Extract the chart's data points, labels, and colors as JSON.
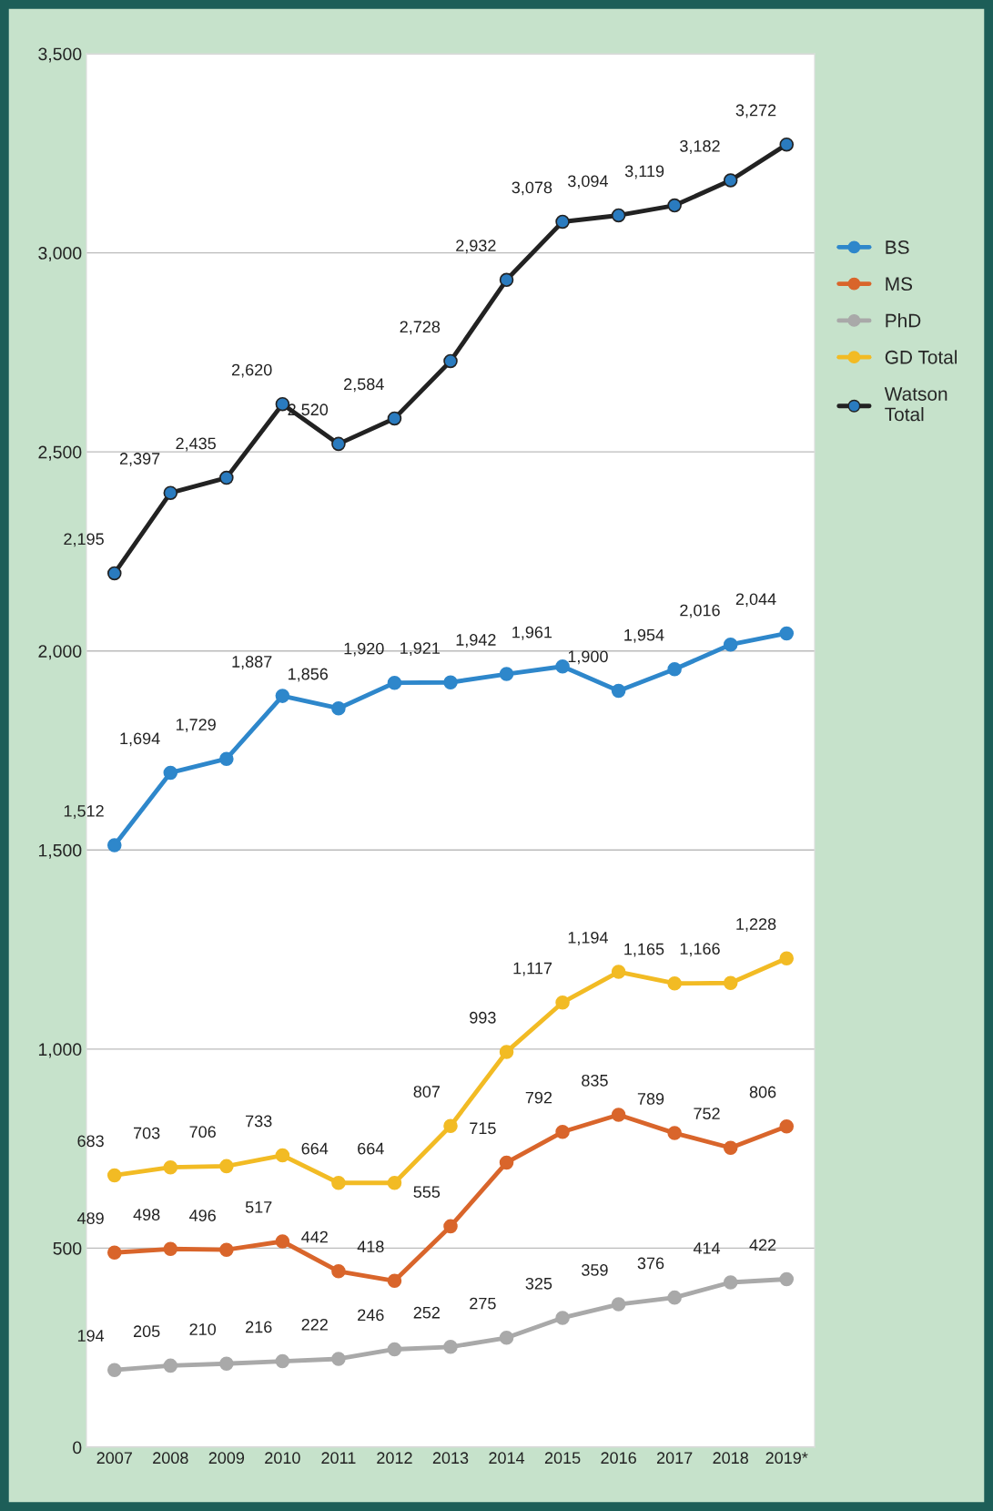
{
  "chart_data": {
    "type": "line",
    "categories": [
      "2007",
      "2008",
      "2009",
      "2010",
      "2011",
      "2012",
      "2013",
      "2014",
      "2015",
      "2016",
      "2017",
      "2018",
      "2019*"
    ],
    "series": [
      {
        "name": "BS",
        "color": "#2e87cb",
        "values": [
          1512,
          1694,
          1729,
          1887,
          1856,
          1920,
          1921,
          1942,
          1961,
          1900,
          1954,
          2016,
          2044
        ],
        "value_labels": [
          "1,512",
          "1,694",
          "1,729",
          "1,887",
          "1,856",
          "1,920",
          "1,921",
          "1,942",
          "1,961",
          "1,900",
          "1,954",
          "2,016",
          "2,044"
        ]
      },
      {
        "name": "MS",
        "color": "#d9652b",
        "values": [
          489,
          498,
          496,
          517,
          442,
          418,
          555,
          715,
          792,
          835,
          789,
          752,
          806
        ],
        "value_labels": [
          "489",
          "498",
          "496",
          "517",
          "442",
          "418",
          "555",
          "715",
          "792",
          "835",
          "789",
          "752",
          "806"
        ]
      },
      {
        "name": "PhD",
        "color": "#a9a9a9",
        "values": [
          194,
          205,
          210,
          216,
          222,
          246,
          252,
          275,
          325,
          359,
          376,
          414,
          422
        ],
        "value_labels": [
          "194",
          "205",
          "210",
          "216",
          "222",
          "246",
          "252",
          "275",
          "325",
          "359",
          "376",
          "414",
          "422"
        ]
      },
      {
        "name": "GD Total",
        "color": "#f2bb24",
        "values": [
          683,
          703,
          706,
          733,
          664,
          664,
          807,
          993,
          1117,
          1194,
          1165,
          1166,
          1228
        ],
        "value_labels": [
          "683",
          "703",
          "706",
          "733",
          "664",
          "664",
          "807",
          "993",
          "1,117",
          "1,194",
          "1,165",
          "1,166",
          "1,228"
        ]
      },
      {
        "name": "Watson\nTotal",
        "color": "#222222",
        "colors": [
          "#2a7bbf",
          "#2a7bbf",
          "#2a7bbf",
          "#2a7bbf",
          "#2a7bbf",
          "#2a7bbf",
          "#2a7bbf",
          "#2a7bbf",
          "#2a7bbf",
          "#2a7bbf",
          "#2a7bbf",
          "#2a7bbf",
          "#2a7bbf"
        ],
        "values": [
          2195,
          2397,
          2435,
          2620,
          2520,
          2584,
          2728,
          2932,
          3078,
          3094,
          3119,
          3182,
          3272
        ],
        "value_labels": [
          "2,195",
          "2,397",
          "2,435",
          "2,620",
          "2,520",
          "2,584",
          "2,728",
          "2,932",
          "3,078",
          "3,094",
          "3,119",
          "3,182",
          "3,272"
        ]
      }
    ],
    "ylim": [
      0,
      3500
    ],
    "yticks": [
      0,
      {
        "value": 500,
        "label": "500"
      },
      {
        "value": 1000,
        "label": "1,000"
      },
      {
        "value": 1500,
        "label": "1,500"
      },
      {
        "value": 2000,
        "label": "2,000"
      },
      {
        "value": 2500,
        "label": "2,500"
      },
      {
        "value": 3000,
        "label": "3,000"
      },
      {
        "value": 3500,
        "label": "3,500"
      }
    ],
    "grid": "y",
    "marker": "circle",
    "line_style": "solid",
    "legend": "right"
  }
}
